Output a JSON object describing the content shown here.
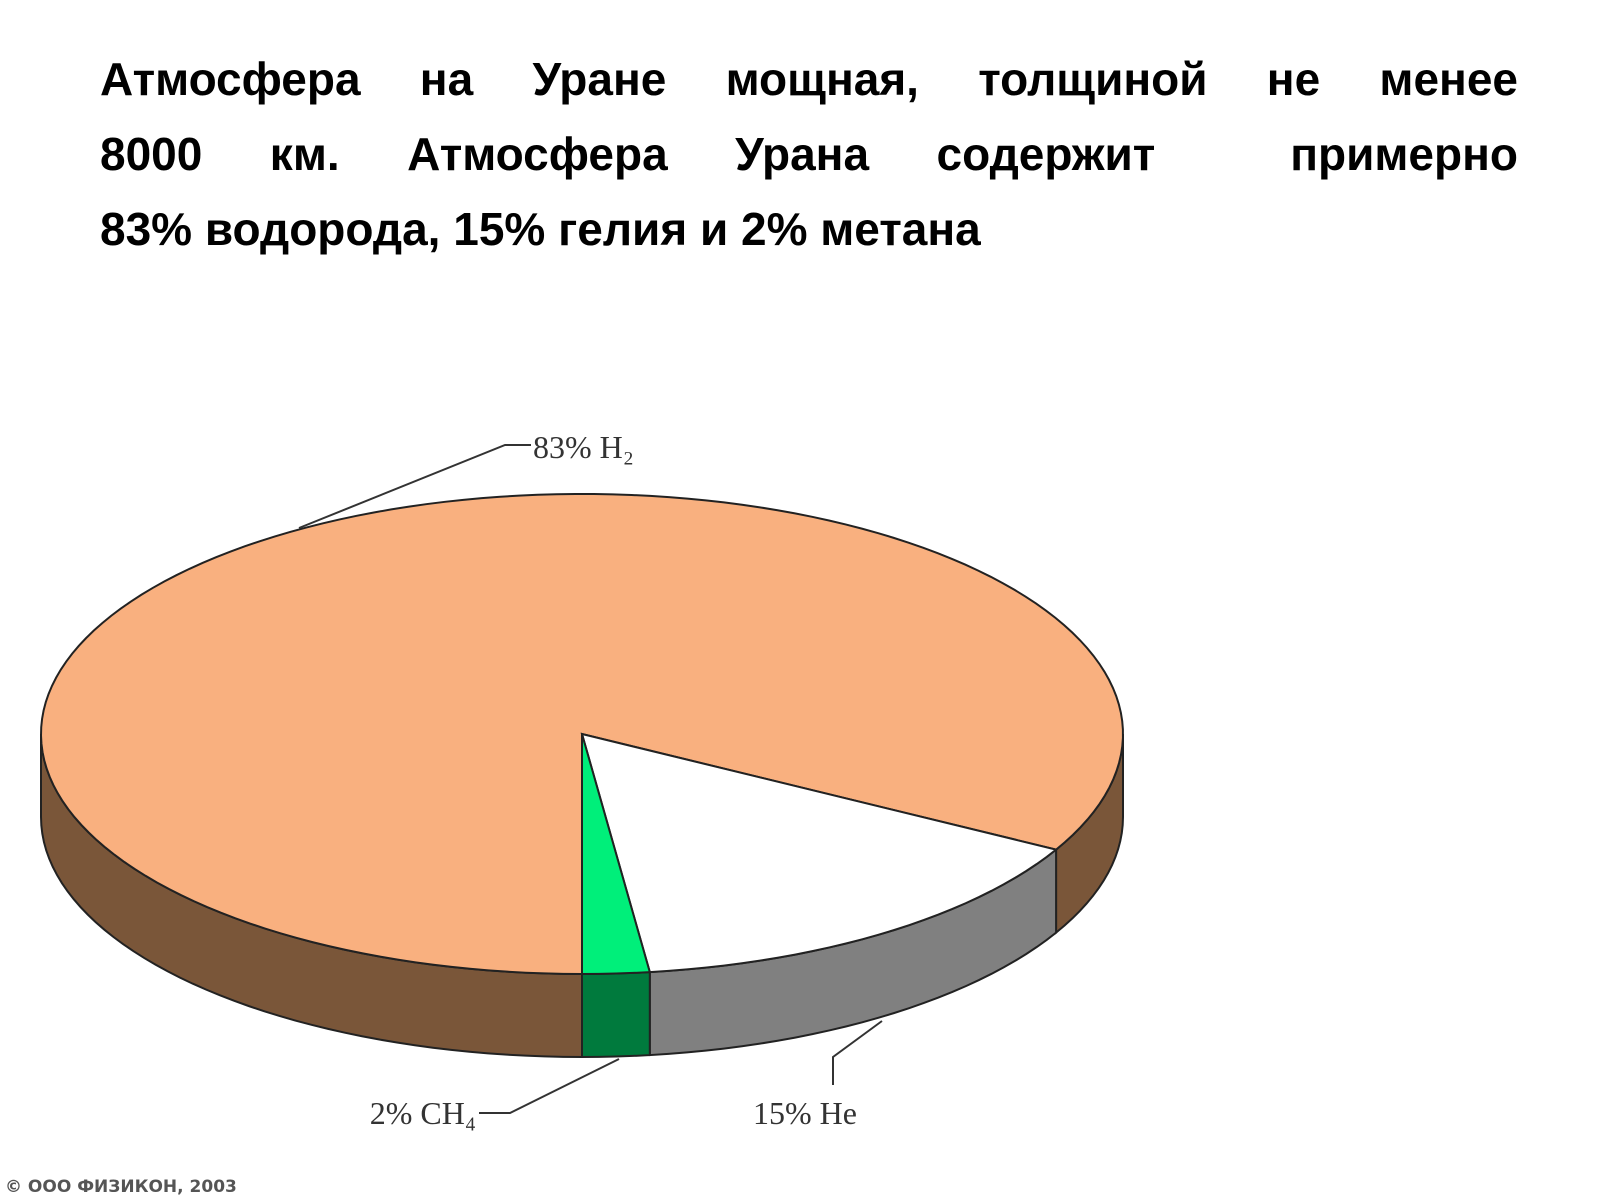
{
  "slide": {
    "lines": [
      "Атмосфера на Уране мощная, толщиной не менее",
      "8000 км. Атмосфера Урана содержит  примерно",
      "83% водорода, 15% гелия и 2% метана"
    ]
  },
  "chart_data": {
    "type": "pie3d",
    "values": [
      83,
      15,
      2
    ],
    "value_labels": [
      "83% H₂",
      "15% He",
      "2% CH₄"
    ],
    "colors": [
      "#f9b07f",
      "#ffffff",
      "#00ef7a"
    ],
    "side_colors": [
      "#7a5639",
      "#808080",
      "#007a3d"
    ],
    "credit": "© ООО ФИЗИКОН, 2003"
  }
}
